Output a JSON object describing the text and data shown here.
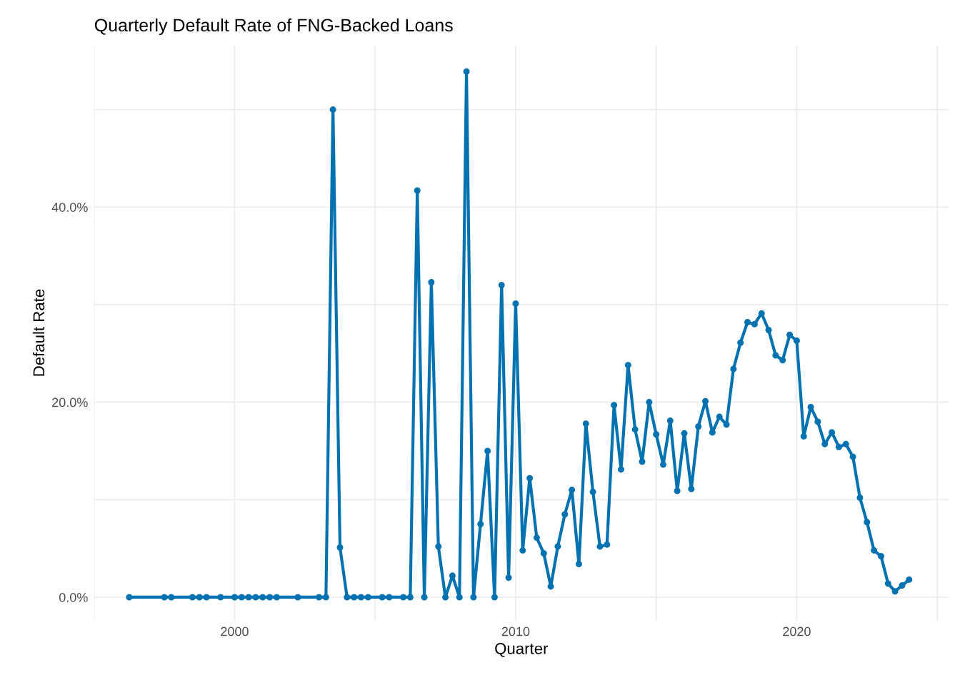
{
  "chart_data": {
    "type": "line",
    "title": "Quarterly Default Rate of FNG-Backed Loans",
    "xlabel": "Quarter",
    "ylabel": "Default Rate",
    "xlim": [
      1995.0,
      2025.4
    ],
    "ylim": [
      -2.4,
      56.6
    ],
    "xticks": [
      {
        "value": 1995,
        "label": null
      },
      2000,
      {
        "value": 2005,
        "label": null
      },
      2010,
      {
        "value": 2015,
        "label": null
      },
      2020,
      {
        "value": 2025,
        "label": null
      }
    ],
    "yticks": [
      {
        "value": 0,
        "label": "0.0%"
      },
      {
        "value": 10,
        "label": null
      },
      {
        "value": 20,
        "label": "20.0%"
      },
      {
        "value": 30,
        "label": null
      },
      {
        "value": 40,
        "label": "40.0%"
      },
      {
        "value": 50,
        "label": null
      }
    ],
    "grid": true,
    "marker": "circle",
    "line_style": "solid",
    "legend": false,
    "series": [
      {
        "color": "#0072b2",
        "x": [
          1996.25,
          1997.5,
          1997.75,
          1998.5,
          1998.75,
          1999.0,
          1999.5,
          2000.0,
          2000.25,
          2000.5,
          2000.75,
          2001.0,
          2001.25,
          2001.5,
          2002.25,
          2003.0,
          2003.25,
          2003.5,
          2003.75,
          2004.0,
          2004.25,
          2004.5,
          2004.75,
          2005.25,
          2005.5,
          2006.0,
          2006.25,
          2006.5,
          2006.75,
          2007.0,
          2007.25,
          2007.5,
          2007.75,
          2008.0,
          2008.25,
          2008.5,
          2008.75,
          2009.0,
          2009.25,
          2009.5,
          2009.75,
          2010.0,
          2010.25,
          2010.5,
          2010.75,
          2011.0,
          2011.25,
          2011.5,
          2011.75,
          2012.0,
          2012.25,
          2012.5,
          2012.75,
          2013.0,
          2013.25,
          2013.5,
          2013.75,
          2014.0,
          2014.25,
          2014.5,
          2014.75,
          2015.0,
          2015.25,
          2015.5,
          2015.75,
          2016.0,
          2016.25,
          2016.5,
          2016.75,
          2017.0,
          2017.25,
          2017.5,
          2017.75,
          2018.0,
          2018.25,
          2018.5,
          2018.75,
          2019.0,
          2019.25,
          2019.5,
          2019.75,
          2020.0,
          2020.25,
          2020.5,
          2020.75,
          2021.0,
          2021.25,
          2021.5,
          2021.75,
          2022.0,
          2022.25,
          2022.5,
          2022.75,
          2023.0,
          2023.25,
          2023.5,
          2023.75,
          2024.0
        ],
        "values": [
          0,
          0,
          0,
          0,
          0,
          0,
          0,
          0,
          0,
          0,
          0,
          0,
          0,
          0,
          0,
          0,
          0,
          50.0,
          5.1,
          0,
          0,
          0,
          0,
          0,
          0,
          0,
          0,
          41.7,
          0,
          32.3,
          5.2,
          0,
          2.2,
          0,
          53.9,
          0,
          7.5,
          15.0,
          0,
          32.0,
          2.0,
          30.1,
          4.8,
          12.2,
          6.1,
          4.5,
          1.1,
          5.2,
          8.5,
          11.0,
          3.4,
          17.8,
          10.8,
          5.2,
          5.4,
          19.7,
          13.1,
          23.8,
          17.2,
          13.9,
          20.0,
          16.7,
          13.6,
          18.1,
          10.9,
          16.8,
          11.1,
          17.5,
          20.1,
          16.9,
          18.5,
          17.7,
          23.4,
          26.1,
          28.2,
          28.0,
          29.1,
          27.4,
          24.8,
          24.3,
          26.9,
          26.3,
          16.5,
          19.5,
          18.0,
          15.7,
          16.9,
          15.4,
          15.7,
          14.4,
          10.2,
          7.7,
          4.8,
          4.2,
          1.4,
          0.6,
          1.2,
          1.8
        ]
      }
    ]
  }
}
